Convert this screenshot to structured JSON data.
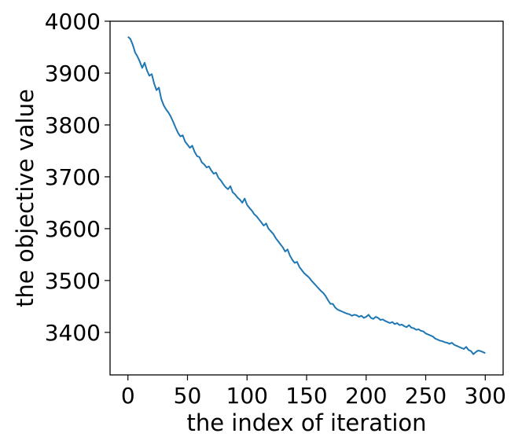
{
  "chart_data": {
    "type": "line",
    "title": "",
    "xlabel": "the index of iteration",
    "ylabel": "the objective value",
    "xlim": [
      -15,
      315
    ],
    "ylim": [
      3318,
      4000
    ],
    "xticks": [
      0,
      50,
      100,
      150,
      200,
      250,
      300
    ],
    "yticks": [
      3400,
      3500,
      3600,
      3700,
      3800,
      3900,
      4000
    ],
    "xtick_labels": [
      "0",
      "50",
      "100",
      "150",
      "200",
      "250",
      "300"
    ],
    "ytick_labels": [
      "3400",
      "3500",
      "3600",
      "3700",
      "3800",
      "3900",
      "4000"
    ],
    "grid": false,
    "legend": "none",
    "series": [
      {
        "color": "#1f77b4",
        "x": [
          0,
          2,
          4,
          6,
          8,
          10,
          12,
          14,
          16,
          18,
          20,
          22,
          24,
          26,
          28,
          30,
          32,
          34,
          36,
          38,
          40,
          42,
          44,
          46,
          48,
          50,
          52,
          54,
          56,
          58,
          60,
          62,
          64,
          66,
          68,
          70,
          72,
          74,
          76,
          78,
          80,
          82,
          84,
          86,
          88,
          90,
          92,
          94,
          96,
          98,
          100,
          102,
          104,
          106,
          108,
          110,
          112,
          114,
          116,
          118,
          120,
          122,
          124,
          126,
          128,
          130,
          132,
          134,
          136,
          138,
          140,
          142,
          144,
          146,
          148,
          150,
          152,
          154,
          156,
          158,
          160,
          162,
          164,
          166,
          168,
          170,
          172,
          174,
          176,
          178,
          180,
          182,
          184,
          186,
          188,
          190,
          192,
          194,
          196,
          198,
          200,
          202,
          204,
          206,
          208,
          210,
          212,
          214,
          216,
          218,
          220,
          222,
          224,
          226,
          228,
          230,
          232,
          234,
          236,
          238,
          240,
          242,
          244,
          246,
          248,
          250,
          252,
          254,
          256,
          258,
          260,
          262,
          264,
          266,
          268,
          270,
          272,
          274,
          276,
          278,
          280,
          282,
          284,
          286,
          288,
          290,
          292,
          294,
          296,
          298,
          300
        ],
        "y": [
          3970,
          3966,
          3955,
          3940,
          3932,
          3922,
          3910,
          3920,
          3905,
          3895,
          3898,
          3880,
          3867,
          3872,
          3850,
          3838,
          3830,
          3824,
          3816,
          3806,
          3795,
          3785,
          3778,
          3780,
          3768,
          3762,
          3756,
          3760,
          3748,
          3740,
          3738,
          3728,
          3724,
          3718,
          3720,
          3712,
          3706,
          3708,
          3698,
          3693,
          3686,
          3680,
          3676,
          3682,
          3670,
          3666,
          3660,
          3656,
          3650,
          3658,
          3646,
          3640,
          3635,
          3628,
          3624,
          3618,
          3612,
          3606,
          3610,
          3600,
          3595,
          3590,
          3582,
          3576,
          3570,
          3564,
          3556,
          3560,
          3548,
          3540,
          3534,
          3536,
          3526,
          3520,
          3514,
          3510,
          3506,
          3500,
          3495,
          3490,
          3485,
          3480,
          3476,
          3470,
          3462,
          3455,
          3455,
          3448,
          3444,
          3442,
          3440,
          3438,
          3436,
          3435,
          3432,
          3434,
          3433,
          3430,
          3432,
          3428,
          3430,
          3434,
          3428,
          3426,
          3430,
          3428,
          3424,
          3425,
          3422,
          3420,
          3418,
          3420,
          3416,
          3418,
          3414,
          3415,
          3412,
          3410,
          3414,
          3409,
          3408,
          3405,
          3406,
          3403,
          3402,
          3398,
          3396,
          3394,
          3392,
          3388,
          3386,
          3384,
          3383,
          3381,
          3380,
          3378,
          3380,
          3376,
          3374,
          3372,
          3370,
          3368,
          3372,
          3366,
          3364,
          3358,
          3362,
          3365,
          3364,
          3362,
          3360
        ]
      }
    ]
  }
}
